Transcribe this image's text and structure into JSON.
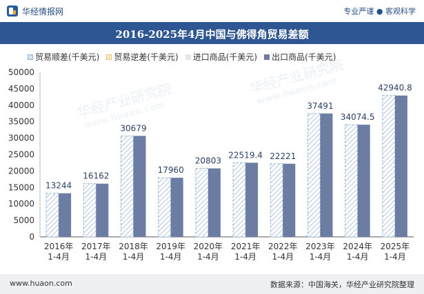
{
  "header": {
    "brand": "华经情报网",
    "tagline": "专业严谨 ● 客观科学"
  },
  "title": "2016-2025年4月中国与佛得角贸易差额",
  "legend": [
    {
      "label": "贸易顺差(千美元)",
      "style": "hatch-blue"
    },
    {
      "label": "贸易逆差(千美元)",
      "style": "hatch-yellow"
    },
    {
      "label": "进口商品(千美元)",
      "style": "solid-light"
    },
    {
      "label": "出口商品(千美元)",
      "style": "solid-dark"
    }
  ],
  "footer": {
    "left": "www.huaon.com",
    "right": "数据来源：中国海关，华经产业研究院整理"
  },
  "watermarks": [
    "华经产业研究院",
    "www.huaon.com"
  ],
  "chart_data": {
    "type": "bar",
    "categories": [
      "2016年\n1-4月",
      "2017年\n1-4月",
      "2018年\n1-4月",
      "2019年\n1-4月",
      "2020年\n1-4月",
      "2021年\n1-4月",
      "2022年\n1-4月",
      "2023年\n1-4月",
      "2024年\n1-4月",
      "2025年\n1-4月"
    ],
    "series": [
      {
        "name": "贸易顺差(千美元)",
        "values": [
          13244,
          16162,
          30679,
          17960,
          20803,
          22519.4,
          22221,
          37491,
          34074.5,
          42940.8
        ],
        "color": "#8fb0d6",
        "labeled": true
      },
      {
        "name": "出口商品(千美元)",
        "values": [
          13244,
          16162,
          30679,
          17960,
          20803,
          22519.4,
          22221,
          37491,
          34074.5,
          42940.8
        ],
        "color": "#6b7da3",
        "labeled": false
      }
    ],
    "ylim": [
      0,
      50000
    ],
    "yticks": [
      0,
      5000,
      10000,
      15000,
      20000,
      25000,
      30000,
      35000,
      40000,
      45000,
      50000
    ],
    "grid": false
  }
}
